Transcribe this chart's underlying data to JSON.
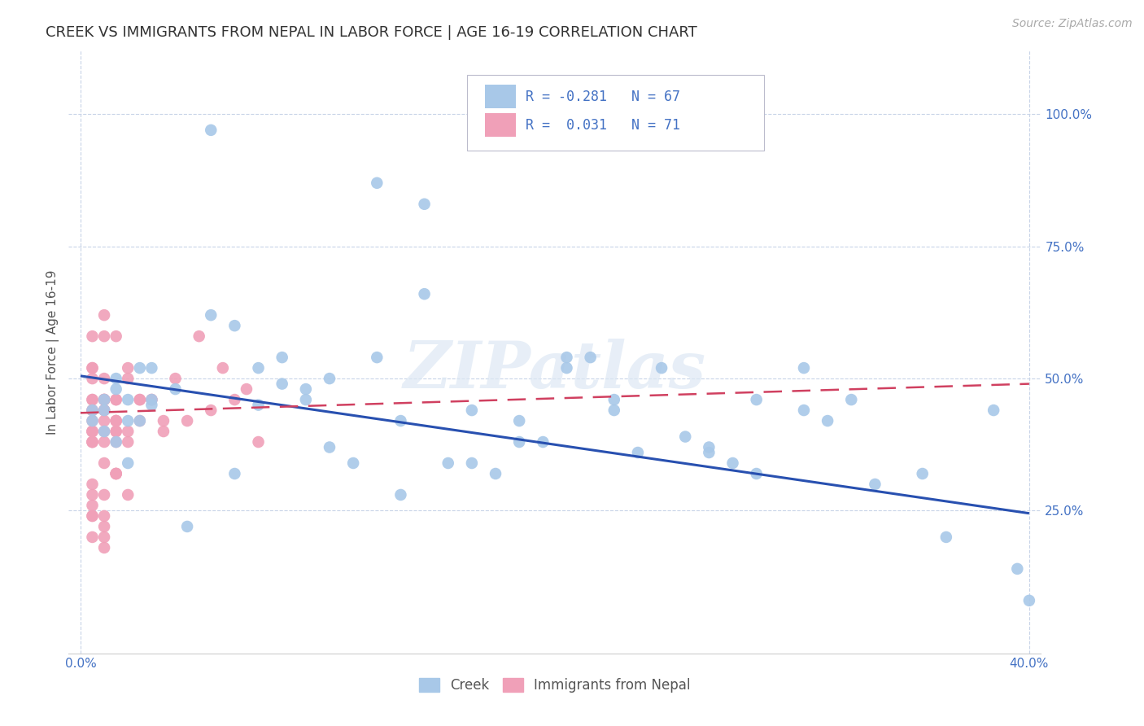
{
  "title": "CREEK VS IMMIGRANTS FROM NEPAL IN LABOR FORCE | AGE 16-19 CORRELATION CHART",
  "source": "Source: ZipAtlas.com",
  "ylabel": "In Labor Force | Age 16-19",
  "xlim": [
    -0.005,
    0.405
  ],
  "ylim": [
    -0.02,
    1.12
  ],
  "yticks": [
    0.25,
    0.5,
    0.75,
    1.0
  ],
  "ytick_labels": [
    "25.0%",
    "50.0%",
    "75.0%",
    "100.0%"
  ],
  "xticks": [
    0.0,
    0.4
  ],
  "xtick_labels": [
    "0.0%",
    "40.0%"
  ],
  "watermark": "ZIPatlas",
  "creek_color": "#a8c8e8",
  "nepal_color": "#f0a0b8",
  "creek_line_color": "#2850b0",
  "nepal_line_color": "#d04060",
  "background_color": "#ffffff",
  "creek_scatter_x": [
    0.055,
    0.125,
    0.145,
    0.025,
    0.015,
    0.01,
    0.03,
    0.02,
    0.01,
    0.005,
    0.015,
    0.02,
    0.03,
    0.04,
    0.005,
    0.01,
    0.015,
    0.02,
    0.025,
    0.03,
    0.065,
    0.075,
    0.085,
    0.095,
    0.105,
    0.115,
    0.135,
    0.155,
    0.165,
    0.175,
    0.185,
    0.195,
    0.205,
    0.215,
    0.225,
    0.235,
    0.255,
    0.265,
    0.275,
    0.285,
    0.305,
    0.325,
    0.355,
    0.385,
    0.395,
    0.4,
    0.245,
    0.145,
    0.125,
    0.065,
    0.085,
    0.105,
    0.045,
    0.055,
    0.075,
    0.095,
    0.165,
    0.185,
    0.205,
    0.225,
    0.135,
    0.265,
    0.305,
    0.315,
    0.365,
    0.285,
    0.335
  ],
  "creek_scatter_y": [
    0.97,
    0.87,
    0.83,
    0.52,
    0.48,
    0.46,
    0.52,
    0.46,
    0.44,
    0.42,
    0.5,
    0.42,
    0.45,
    0.48,
    0.44,
    0.4,
    0.38,
    0.34,
    0.42,
    0.46,
    0.6,
    0.52,
    0.49,
    0.46,
    0.5,
    0.34,
    0.42,
    0.34,
    0.34,
    0.32,
    0.38,
    0.38,
    0.54,
    0.54,
    0.46,
    0.36,
    0.39,
    0.36,
    0.34,
    0.32,
    0.44,
    0.46,
    0.32,
    0.44,
    0.14,
    0.08,
    0.52,
    0.66,
    0.54,
    0.32,
    0.54,
    0.37,
    0.22,
    0.62,
    0.45,
    0.48,
    0.44,
    0.42,
    0.52,
    0.44,
    0.28,
    0.37,
    0.52,
    0.42,
    0.2,
    0.46,
    0.3
  ],
  "nepal_scatter_x": [
    0.005,
    0.01,
    0.015,
    0.02,
    0.025,
    0.03,
    0.035,
    0.04,
    0.045,
    0.05,
    0.055,
    0.06,
    0.065,
    0.07,
    0.075,
    0.005,
    0.01,
    0.015,
    0.02,
    0.025,
    0.005,
    0.01,
    0.015,
    0.02,
    0.005,
    0.01,
    0.015,
    0.005,
    0.01,
    0.015,
    0.005,
    0.01,
    0.015,
    0.02,
    0.005,
    0.01,
    0.015,
    0.005,
    0.01,
    0.005,
    0.01,
    0.015,
    0.005,
    0.005,
    0.01,
    0.015,
    0.02,
    0.025,
    0.03,
    0.035,
    0.005,
    0.01,
    0.015,
    0.005,
    0.01,
    0.005,
    0.01,
    0.005,
    0.01,
    0.005,
    0.01,
    0.015,
    0.005,
    0.01,
    0.005,
    0.005,
    0.01,
    0.015,
    0.005,
    0.01,
    0.005
  ],
  "nepal_scatter_y": [
    0.58,
    0.62,
    0.58,
    0.52,
    0.46,
    0.46,
    0.42,
    0.5,
    0.42,
    0.58,
    0.44,
    0.52,
    0.46,
    0.48,
    0.38,
    0.52,
    0.46,
    0.46,
    0.38,
    0.42,
    0.52,
    0.46,
    0.42,
    0.5,
    0.46,
    0.42,
    0.38,
    0.5,
    0.44,
    0.42,
    0.38,
    0.5,
    0.4,
    0.4,
    0.4,
    0.46,
    0.32,
    0.46,
    0.28,
    0.26,
    0.44,
    0.46,
    0.2,
    0.24,
    0.34,
    0.32,
    0.28,
    0.46,
    0.46,
    0.4,
    0.42,
    0.4,
    0.4,
    0.38,
    0.38,
    0.3,
    0.22,
    0.24,
    0.18,
    0.44,
    0.58,
    0.32,
    0.28,
    0.24,
    0.4,
    0.4,
    0.46,
    0.42,
    0.38,
    0.2,
    0.44
  ],
  "creek_line_x": [
    0.0,
    0.4
  ],
  "creek_line_y": [
    0.505,
    0.245
  ],
  "nepal_line_x": [
    0.0,
    0.4
  ],
  "nepal_line_y": [
    0.435,
    0.49
  ],
  "grid_color": "#c8d4e8",
  "grid_linestyle": "--",
  "title_fontsize": 13,
  "axis_label_fontsize": 11,
  "tick_fontsize": 11,
  "legend_fontsize": 12,
  "source_fontsize": 10
}
